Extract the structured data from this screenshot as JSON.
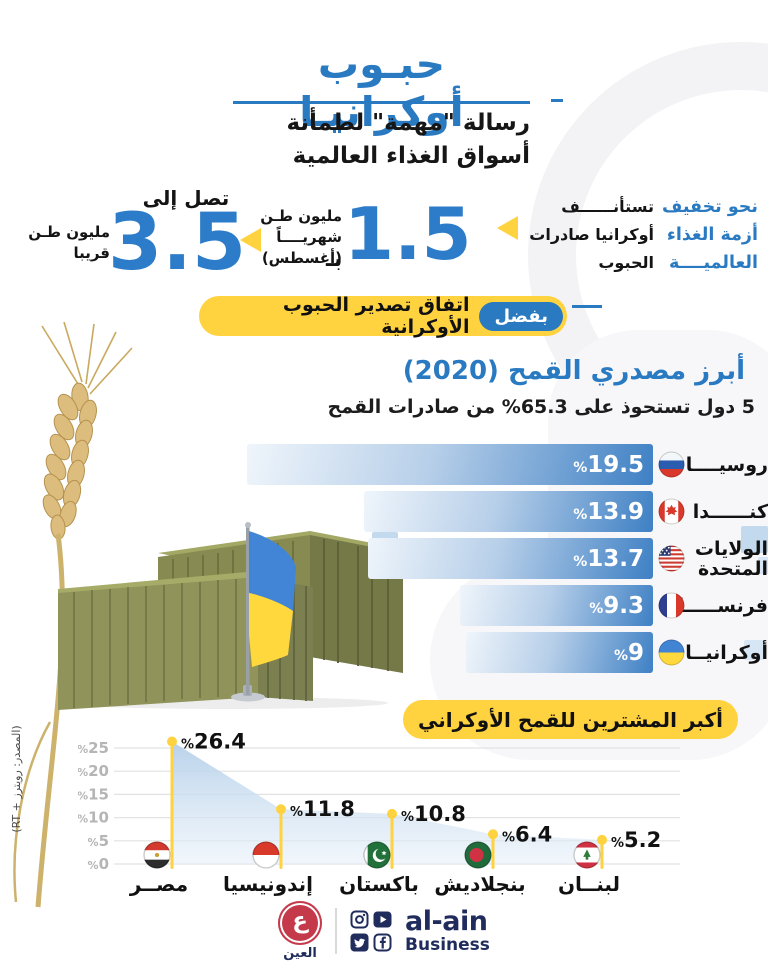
{
  "header": {
    "title": "حبـوب أوكرانيـا",
    "subtitle_line1": "رسالة \"مهمة\" لطمأنة",
    "subtitle_line2": "أسواق الغذاء العالمية"
  },
  "stats": {
    "lead_blue": [
      "نحو تخفيف",
      "أزمة الغذاء",
      "العالميــــة"
    ],
    "lead_black": [
      "تستأنــــــف",
      "أوكرانيا صادرات",
      "الحبوب"
    ],
    "monthly_prefix": "بـ",
    "monthly_value": "1.5",
    "monthly_unit_lines": [
      "مليون طـن",
      "شهريــــاً",
      "(أغسطس)"
    ],
    "target_lead": "تصل إلى",
    "target_value": "3.5",
    "target_unit_lines": [
      "مليون طـن",
      "قريبا"
    ]
  },
  "badge": {
    "tag": "بفضل",
    "text": "اتفاق تصدير الحبوب الأوكرانية"
  },
  "source_note": "(المصدر: رويترز + RT)",
  "footer": {
    "logo_glyph": "ع",
    "brand_ar": "العين",
    "brand_en": "al-ain",
    "brand_sub": "Business"
  },
  "colors": {
    "accent_blue": "#2a7ac2",
    "yellow": "#ffd23f",
    "navy": "#1f2c5c",
    "bar_blue": "#3e80c4"
  },
  "chart_data": [
    {
      "type": "bar",
      "title": "أبرز مصدري القمح (2020)",
      "subtitle": "5 دول تستحوذ على 65.3% من صادرات القمح",
      "orientation": "horizontal",
      "unit": "%",
      "categories": [
        "روسيــــا",
        "كنــــــدا",
        "الولايات المتحدة",
        "فرنســـــا",
        "أوكرانيــا"
      ],
      "values": [
        19.5,
        13.9,
        13.7,
        9.3,
        9
      ],
      "flags": [
        "russia",
        "canada",
        "usa",
        "france",
        "ukraine"
      ],
      "xlim": [
        0,
        20
      ],
      "grid": false,
      "value_label_prefix": "%"
    },
    {
      "type": "area",
      "title": "أكبر المشترين للقمح الأوكراني",
      "categories": [
        "مصــر",
        "إندونيسيا",
        "باكستان",
        "بنجلاديش",
        "لبنــان"
      ],
      "values": [
        26.4,
        11.8,
        10.8,
        6.4,
        5.2
      ],
      "flags": [
        "egypt",
        "indonesia",
        "pakistan",
        "bangladesh",
        "lebanon"
      ],
      "unit": "%",
      "yticks": [
        0,
        5,
        10,
        15,
        20,
        25
      ],
      "ylim": [
        0,
        28
      ],
      "grid": true,
      "marker_color": "#ffd23f",
      "value_label_prefix": "%"
    }
  ]
}
